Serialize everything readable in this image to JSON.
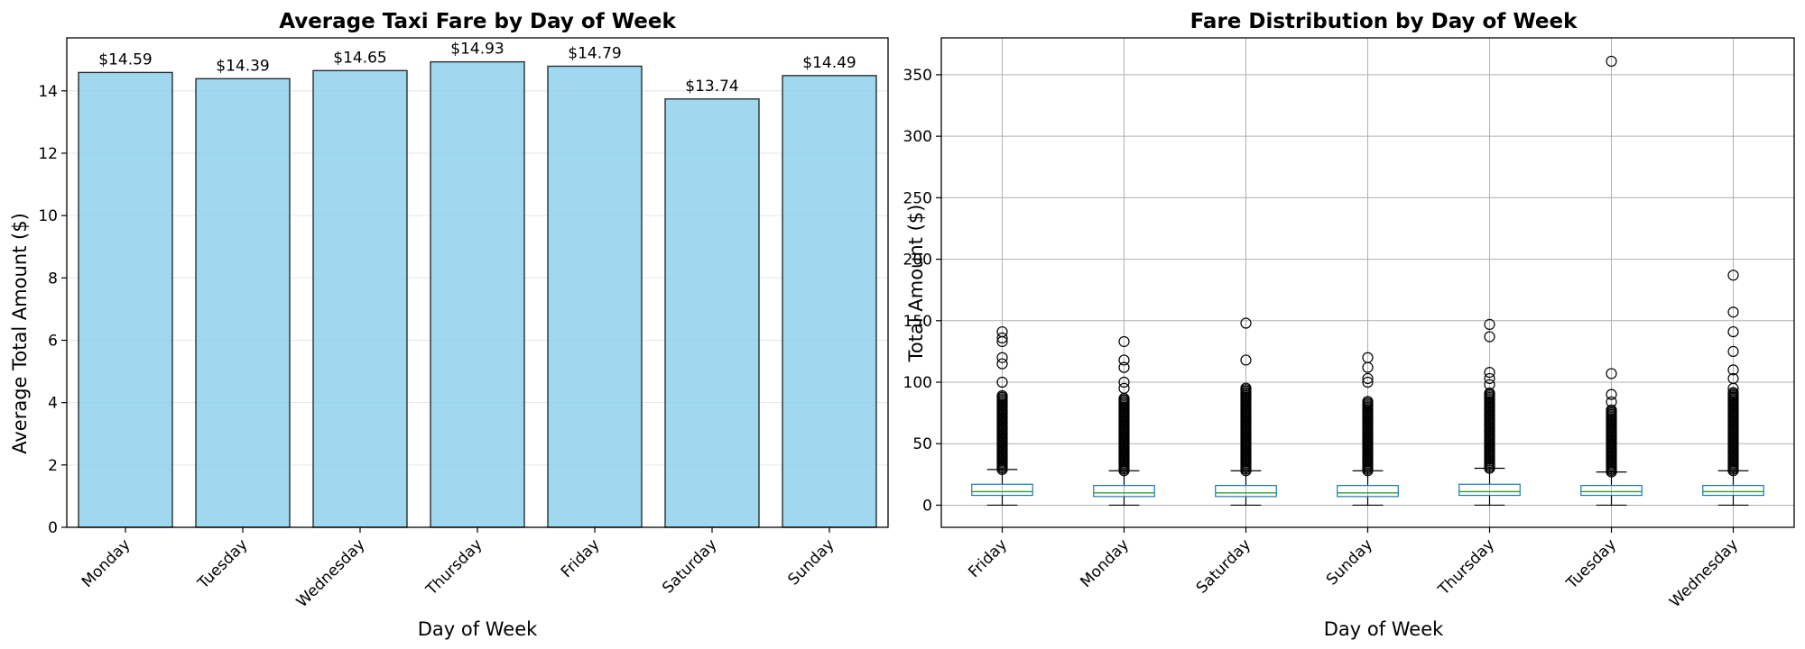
{
  "chart_data": [
    {
      "type": "bar",
      "title": "Average Taxi Fare by Day of Week",
      "xlabel": "Day of Week",
      "ylabel": "Average Total Amount ($)",
      "categories": [
        "Monday",
        "Tuesday",
        "Wednesday",
        "Thursday",
        "Friday",
        "Saturday",
        "Sunday"
      ],
      "values": [
        14.59,
        14.39,
        14.65,
        14.93,
        14.79,
        13.74,
        14.49
      ],
      "data_labels": [
        "$14.59",
        "$14.39",
        "$14.65",
        "$14.93",
        "$14.79",
        "$13.74",
        "$14.49"
      ],
      "ylim": [
        0,
        15.7
      ],
      "yticks": [
        0,
        2,
        4,
        6,
        8,
        10,
        12,
        14
      ],
      "grid": "y",
      "bar_color": "#87ceeb",
      "edge_color": "#000000"
    },
    {
      "type": "box",
      "title": "Fare Distribution by Day of Week",
      "xlabel": "Day of Week",
      "ylabel": "Total Amount ($)",
      "categories": [
        "Friday",
        "Monday",
        "Saturday",
        "Sunday",
        "Thursday",
        "Tuesday",
        "Wednesday"
      ],
      "ylim": [
        -18,
        380
      ],
      "yticks": [
        0,
        50,
        100,
        150,
        200,
        250,
        300,
        350
      ],
      "grid": "both",
      "box_color": "#1f77b4",
      "median_color": "#2ca02c",
      "boxes": [
        {
          "whisker_low": 0,
          "q1": 8,
          "median": 11,
          "q3": 17,
          "whisker_high": 29,
          "dense_outliers": [
            29,
            90
          ],
          "outliers": [
            100,
            115,
            120,
            133,
            136,
            141
          ]
        },
        {
          "whisker_low": 0,
          "q1": 7,
          "median": 10,
          "q3": 16,
          "whisker_high": 28,
          "dense_outliers": [
            28,
            88
          ],
          "outliers": [
            95,
            100,
            112,
            118,
            133
          ]
        },
        {
          "whisker_low": 0,
          "q1": 7,
          "median": 10,
          "q3": 16,
          "whisker_high": 28,
          "dense_outliers": [
            28,
            96
          ],
          "outliers": [
            118,
            148
          ]
        },
        {
          "whisker_low": 0,
          "q1": 7,
          "median": 10,
          "q3": 16,
          "whisker_high": 28,
          "dense_outliers": [
            28,
            85
          ],
          "outliers": [
            100,
            103,
            112,
            120
          ]
        },
        {
          "whisker_low": 0,
          "q1": 8,
          "median": 11,
          "q3": 17,
          "whisker_high": 30,
          "dense_outliers": [
            30,
            92
          ],
          "outliers": [
            98,
            103,
            108,
            137,
            147
          ]
        },
        {
          "whisker_low": 0,
          "q1": 8,
          "median": 11,
          "q3": 16,
          "whisker_high": 27,
          "dense_outliers": [
            27,
            78
          ],
          "outliers": [
            84,
            90,
            107,
            361
          ]
        },
        {
          "whisker_low": 0,
          "q1": 8,
          "median": 11,
          "q3": 16,
          "whisker_high": 28,
          "dense_outliers": [
            28,
            92
          ],
          "outliers": [
            95,
            103,
            110,
            125,
            141,
            157,
            187
          ]
        }
      ]
    }
  ]
}
